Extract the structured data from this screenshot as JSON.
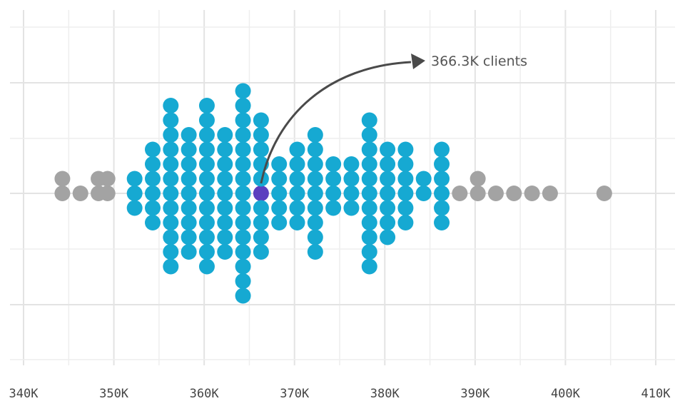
{
  "chart_data": {
    "type": "scatter",
    "subtype": "beeswarm",
    "title": "",
    "xlabel": "",
    "ylabel": "",
    "xlim": [
      340000,
      410000
    ],
    "x_ticks": [
      340000,
      350000,
      360000,
      370000,
      380000,
      390000,
      400000,
      410000
    ],
    "x_tick_labels": [
      "340K",
      "350K",
      "360K",
      "370K",
      "380K",
      "390K",
      "400K",
      "410K"
    ],
    "grid": true,
    "colors": {
      "inner": "#16a9d2",
      "outer": "#a3a3a3",
      "highlight": "#5b3fbf"
    },
    "inner_range": [
      351000,
      387000
    ],
    "highlight": {
      "x": 366300,
      "label": "366.3K clients"
    },
    "column_counts": [
      {
        "x": 344300,
        "count": 2
      },
      {
        "x": 346300,
        "count": 1
      },
      {
        "x": 348300,
        "count": 2
      },
      {
        "x": 349300,
        "count": 2
      },
      {
        "x": 352300,
        "count": 3
      },
      {
        "x": 354300,
        "count": 6
      },
      {
        "x": 356300,
        "count": 12
      },
      {
        "x": 358300,
        "count": 9
      },
      {
        "x": 360300,
        "count": 12
      },
      {
        "x": 362300,
        "count": 9
      },
      {
        "x": 364300,
        "count": 15
      },
      {
        "x": 366300,
        "count": 10
      },
      {
        "x": 368300,
        "count": 5
      },
      {
        "x": 370300,
        "count": 6
      },
      {
        "x": 372300,
        "count": 9
      },
      {
        "x": 374300,
        "count": 4
      },
      {
        "x": 376300,
        "count": 4
      },
      {
        "x": 378300,
        "count": 11
      },
      {
        "x": 380300,
        "count": 7
      },
      {
        "x": 382300,
        "count": 6
      },
      {
        "x": 384300,
        "count": 2
      },
      {
        "x": 386300,
        "count": 6
      },
      {
        "x": 388300,
        "count": 1
      },
      {
        "x": 390300,
        "count": 2
      },
      {
        "x": 392300,
        "count": 1
      },
      {
        "x": 394300,
        "count": 1
      },
      {
        "x": 396300,
        "count": 1
      },
      {
        "x": 398300,
        "count": 1
      },
      {
        "x": 404300,
        "count": 1
      }
    ]
  }
}
